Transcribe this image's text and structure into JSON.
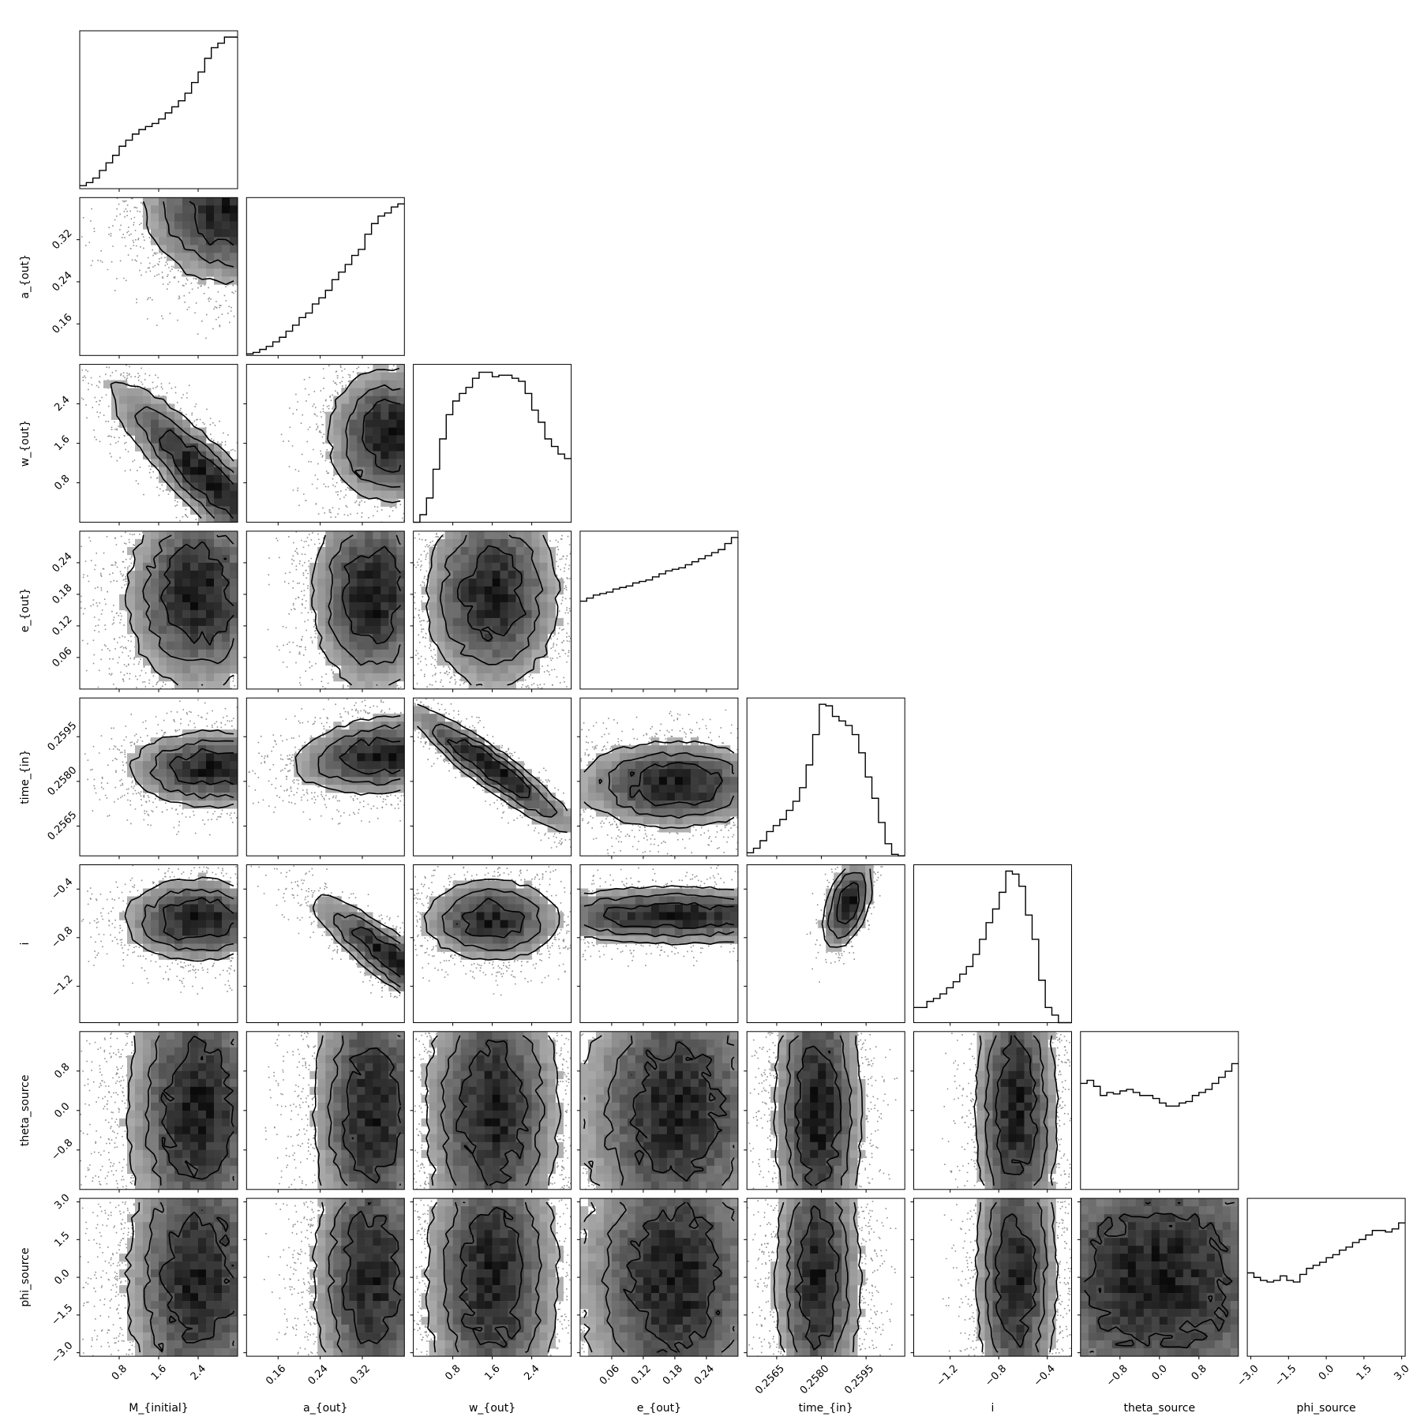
{
  "chart_data": {
    "type": "corner",
    "parameters": [
      {
        "name": "M_{initial}",
        "range": [
          0.0,
          3.2
        ],
        "ticks": [
          0.8,
          1.6,
          2.4
        ],
        "tick_labels": [
          "0.8",
          "1.6",
          "2.4"
        ]
      },
      {
        "name": "a_{out}",
        "range": [
          0.1,
          0.4
        ],
        "ticks": [
          0.16,
          0.24,
          0.32
        ],
        "tick_labels": [
          "0.16",
          "0.24",
          "0.32"
        ]
      },
      {
        "name": "w_{out}",
        "range": [
          0.0,
          3.2
        ],
        "ticks": [
          0.8,
          1.6,
          2.4
        ],
        "tick_labels": [
          "0.8",
          "1.6",
          "2.4"
        ]
      },
      {
        "name": "e_{out}",
        "range": [
          0.0,
          0.3
        ],
        "ticks": [
          0.06,
          0.12,
          0.18,
          0.24
        ],
        "tick_labels": [
          "0.06",
          "0.12",
          "0.18",
          "0.24"
        ]
      },
      {
        "name": "time_{in}",
        "range": [
          0.2555,
          0.2608
        ],
        "ticks": [
          0.2565,
          0.258,
          0.2595
        ],
        "tick_labels": [
          "0.2565",
          "0.2580",
          "0.2595"
        ]
      },
      {
        "name": "i",
        "range": [
          -1.5,
          -0.2
        ],
        "ticks": [
          -1.2,
          -0.8,
          -0.4
        ],
        "tick_labels": [
          "−1.2",
          "−0.8",
          "−0.4"
        ]
      },
      {
        "name": "theta_source",
        "range": [
          -1.6,
          1.6
        ],
        "ticks": [
          -0.8,
          0.0,
          0.8
        ],
        "tick_labels": [
          "−0.8",
          "0.0",
          "0.8"
        ]
      },
      {
        "name": "phi_source",
        "range": [
          -3.14,
          3.14
        ],
        "ticks": [
          -3.0,
          -1.5,
          0.0,
          1.5,
          3.0
        ],
        "tick_labels": [
          "−3.0",
          "−1.5",
          "0.0",
          "1.5",
          "3.0"
        ]
      }
    ],
    "histograms": [
      [
        0.02,
        0.04,
        0.07,
        0.12,
        0.17,
        0.22,
        0.28,
        0.32,
        0.36,
        0.39,
        0.41,
        0.43,
        0.46,
        0.5,
        0.54,
        0.58,
        0.63,
        0.7,
        0.77,
        0.86,
        0.93,
        0.96,
        1.0,
        1.0
      ],
      [
        0.01,
        0.02,
        0.04,
        0.06,
        0.09,
        0.12,
        0.16,
        0.2,
        0.25,
        0.28,
        0.34,
        0.38,
        0.43,
        0.5,
        0.55,
        0.6,
        0.66,
        0.7,
        0.8,
        0.87,
        0.92,
        0.94,
        0.98,
        1.0
      ],
      [
        0.0,
        0.05,
        0.16,
        0.35,
        0.55,
        0.71,
        0.8,
        0.85,
        0.89,
        0.95,
        0.99,
        0.99,
        0.96,
        0.97,
        0.97,
        0.95,
        0.93,
        0.85,
        0.74,
        0.66,
        0.55,
        0.5,
        0.45,
        0.42
      ],
      [
        0.58,
        0.6,
        0.62,
        0.63,
        0.64,
        0.66,
        0.67,
        0.68,
        0.7,
        0.71,
        0.72,
        0.74,
        0.76,
        0.78,
        0.79,
        0.8,
        0.82,
        0.84,
        0.86,
        0.88,
        0.9,
        0.92,
        0.96,
        1.0
      ],
      [
        0.02,
        0.05,
        0.1,
        0.16,
        0.2,
        0.24,
        0.3,
        0.36,
        0.45,
        0.6,
        0.8,
        1.0,
        0.99,
        0.92,
        0.89,
        0.86,
        0.8,
        0.68,
        0.52,
        0.38,
        0.22,
        0.08,
        0.01,
        0.0
      ],
      [
        0.1,
        0.1,
        0.14,
        0.16,
        0.19,
        0.23,
        0.27,
        0.32,
        0.37,
        0.45,
        0.55,
        0.66,
        0.75,
        0.86,
        1.0,
        0.98,
        0.9,
        0.71,
        0.55,
        0.28,
        0.1,
        0.05,
        0.0,
        0.0
      ],
      [
        0.7,
        0.72,
        0.68,
        0.62,
        0.64,
        0.63,
        0.65,
        0.66,
        0.64,
        0.62,
        0.62,
        0.6,
        0.57,
        0.55,
        0.55,
        0.57,
        0.58,
        0.62,
        0.64,
        0.66,
        0.7,
        0.74,
        0.78,
        0.83
      ],
      [
        0.55,
        0.52,
        0.5,
        0.49,
        0.5,
        0.53,
        0.5,
        0.49,
        0.54,
        0.58,
        0.6,
        0.62,
        0.65,
        0.67,
        0.7,
        0.72,
        0.75,
        0.77,
        0.8,
        0.83,
        0.83,
        0.82,
        0.84,
        0.88
      ]
    ],
    "bins": 24,
    "contour_levels": [
      "0.5-sigma",
      "1-sigma",
      "1.5-sigma",
      "2-sigma"
    ],
    "colors": {
      "density": "#000000",
      "line": "#000000",
      "background": "#ffffff"
    }
  }
}
